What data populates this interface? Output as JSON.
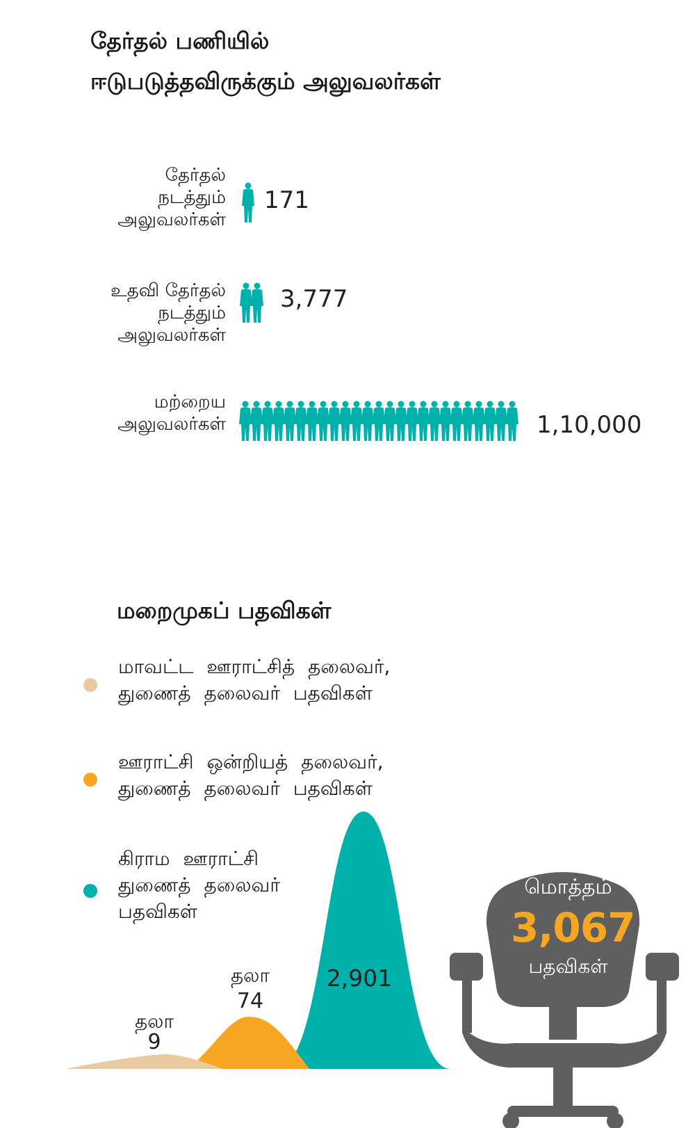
{
  "title": "தேர்தல் பணியில் ஈடுபடுத்தவிருக்கும் அலுவலர்கள்",
  "title_lines": [
    "தேர்தல் பணியில்",
    "ஈடுபடுத்தவிருக்கும் அலுவலர்கள்"
  ],
  "officers": [
    {
      "label_lines": [
        "தேர்தல்",
        "நடத்தும்",
        "அலுவலர்கள்"
      ],
      "value_label": "171",
      "value": 171,
      "icons": 1
    },
    {
      "label_lines": [
        "உதவி தேர்தல்",
        "நடத்தும்",
        "அலுவலர்கள்"
      ],
      "value_label": "3,777",
      "value": 3777,
      "icons": 2
    },
    {
      "label_lines": [
        "மற்றைய",
        "அலுவலர்கள்"
      ],
      "value_label": "1,10,000",
      "value": 110000,
      "icons": 25
    }
  ],
  "posts_title": "மறைமுகப் பதவிகள்",
  "legend": [
    {
      "lines": [
        "மாவட்ட ஊராட்சித் தலைவர்,",
        "துணைத் தலைவர் பதவிகள்"
      ],
      "color": "#e8c9a0"
    },
    {
      "lines": [
        "ஊராட்சி ஒன்றியத் தலைவர்,",
        "துணைத் தலைவர் பதவிகள்"
      ],
      "color": "#f5a623"
    },
    {
      "lines": [
        "கிராம ஊராட்சி",
        "துணைத் தலைவர்",
        "பதவிகள்"
      ],
      "color": "#00b0aa"
    }
  ],
  "chart_data": {
    "type": "area",
    "categories": [
      "மாவட்ட ஊராட்சித் தலைவர், துணைத் தலைவர் பதவிகள்",
      "ஊராட்சி ஒன்றியத் தலைவர், துணைத் தலைவர் பதவிகள்",
      "கிராம ஊராட்சி துணைத் தலைவர் பதவிகள்"
    ],
    "values": [
      9,
      74,
      2901
    ],
    "labels": [
      [
        "தலா",
        "9"
      ],
      [
        "தலா",
        "74"
      ],
      [
        "",
        "2,901"
      ]
    ],
    "colors": [
      "#e8c9a0",
      "#f5a623",
      "#00b0aa"
    ]
  },
  "total": {
    "top": "மொத்தம்",
    "value": "3,067",
    "bottom": "பதவிகள்"
  },
  "colors": {
    "teal": "#00b0aa",
    "orange": "#f5a623",
    "beige": "#e8c9a0",
    "chair": "#5f5f5f"
  }
}
